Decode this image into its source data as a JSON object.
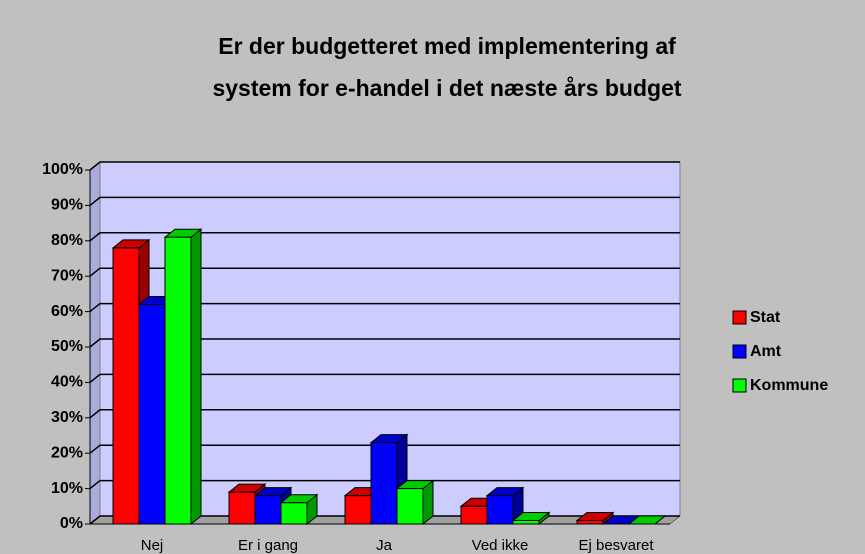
{
  "chart_data": {
    "type": "bar3d",
    "title": [
      "Er der budgetteret med implementering af",
      "system for e-handel i det næste års budget"
    ],
    "categories": [
      "Nej",
      "Er i gang",
      "Ja",
      "Ved ikke",
      "Ej besvaret"
    ],
    "series": [
      {
        "name": "Stat",
        "color": "#ff0000",
        "values": [
          78,
          9,
          8,
          5,
          1
        ]
      },
      {
        "name": "Amt",
        "color": "#0000ff",
        "values": [
          62,
          8,
          23,
          8,
          0
        ]
      },
      {
        "name": "Kommune",
        "color": "#00ff00",
        "values": [
          81,
          6,
          10,
          1,
          0
        ]
      }
    ],
    "ylim": [
      0,
      100
    ],
    "yticks": [
      {
        "value": 0,
        "label": "0%"
      },
      {
        "value": 10,
        "label": "10%"
      },
      {
        "value": 20,
        "label": "20%"
      },
      {
        "value": 30,
        "label": "30%"
      },
      {
        "value": 40,
        "label": "40%"
      },
      {
        "value": 50,
        "label": "50%"
      },
      {
        "value": 60,
        "label": "60%"
      },
      {
        "value": 70,
        "label": "70%"
      },
      {
        "value": 80,
        "label": "80%"
      },
      {
        "value": 90,
        "label": "90%"
      },
      {
        "value": 100,
        "label": "100%"
      }
    ],
    "grid": true,
    "legend": "right"
  }
}
